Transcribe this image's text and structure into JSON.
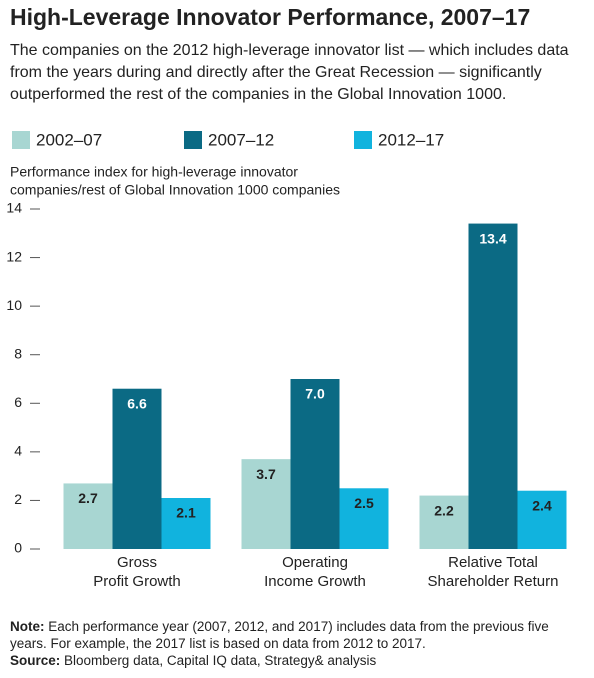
{
  "chart_data": {
    "type": "bar",
    "title": "High-Leverage Innovator Performance, 2007–17",
    "subtitle": "The companies on the 2012 high-leverage innovator list — which includes data from the years during and directly after the Great Recession — significantly outperformed the rest of the companies in the Global Innovation 1000.",
    "y_label": [
      "Performance index for high-leverage innovator",
      "companies/rest of Global Innovation 1000 companies"
    ],
    "categories": [
      [
        "Gross",
        "Profit Growth"
      ],
      [
        "Operating",
        "Income Growth"
      ],
      [
        "Relative Total",
        "Shareholder Return"
      ]
    ],
    "series": [
      {
        "name": "2002–07",
        "color": "#a8d6d2",
        "values": [
          2.7,
          3.7,
          2.2
        ]
      },
      {
        "name": "2007–12",
        "color": "#0b6a84",
        "values": [
          6.6,
          7.0,
          13.4
        ],
        "value_labels": [
          "6.6",
          "7.0",
          "13.4"
        ]
      },
      {
        "name": "2012–17",
        "color": "#11b3de",
        "values": [
          2.1,
          2.5,
          2.4
        ]
      }
    ],
    "ylim": [
      0,
      14
    ],
    "yticks": [
      0,
      2,
      4,
      6,
      8,
      10,
      12,
      14
    ],
    "note": {
      "label": "Note:",
      "text": "Each performance year (2007, 2012, and 2017) includes data from the previous five years. For example, the 2017 list is based on data from 2012 to 2017."
    },
    "source": {
      "label": "Source:",
      "text": "Bloomberg data, Capital IQ data, Strategy& analysis"
    }
  }
}
